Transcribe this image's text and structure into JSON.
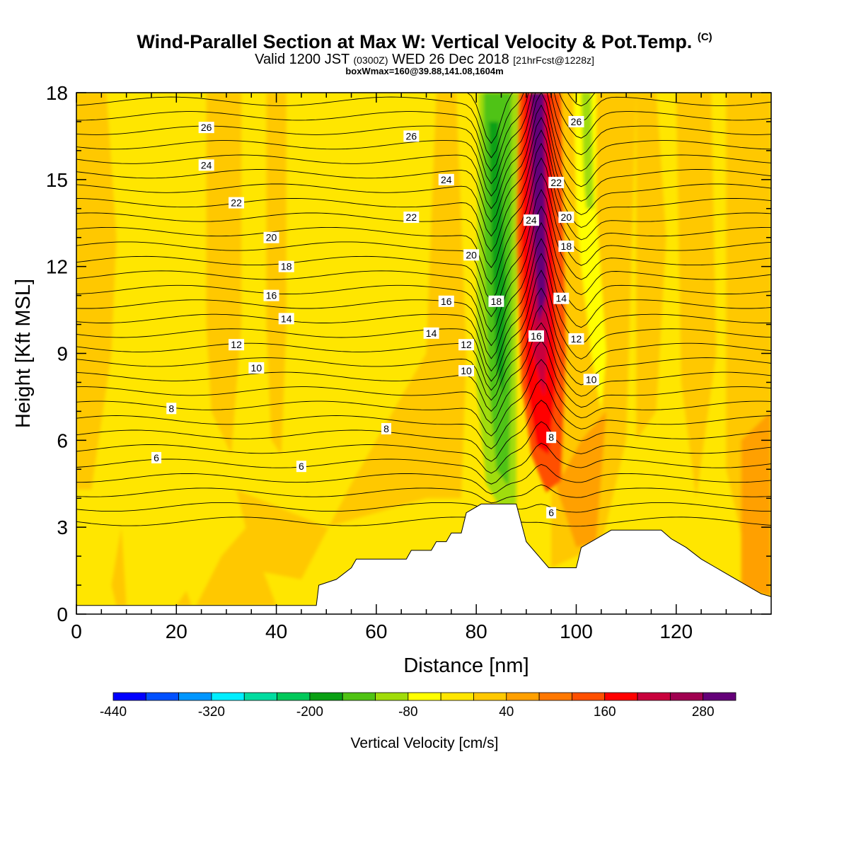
{
  "title": {
    "main": "Wind-Parallel Section at Max W: Vertical Velocity & Pot.Temp.",
    "copyright": "(C)",
    "valid_prefix": "Valid 1200 JST",
    "valid_zulu": "(0300Z)",
    "valid_date": "WED 26 Dec 2018",
    "forecast": "[21hrFcst@1228z]",
    "box_info": "boxWmax=160@39.88,141.08,1604m"
  },
  "chart_data": {
    "type": "contour-section",
    "xlabel": "Distance [nm]",
    "ylabel": "Height [Kft MSL]",
    "xlim": [
      0,
      139
    ],
    "ylim": [
      0,
      18
    ],
    "x_ticks": [
      0,
      20,
      40,
      60,
      80,
      100,
      120
    ],
    "y_ticks": [
      0,
      3,
      6,
      9,
      12,
      15,
      18
    ],
    "colorbar": {
      "label": "Vertical Velocity [cm/s]",
      "tick_labels": [
        "-440",
        "-320",
        "-200",
        "-80",
        "40",
        "160",
        "280"
      ],
      "colors": [
        "#0000ff",
        "#0050ff",
        "#0096ff",
        "#00eeff",
        "#00dca0",
        "#00c85a",
        "#0aa014",
        "#50c314",
        "#a0dc0a",
        "#ffff00",
        "#ffe600",
        "#ffc800",
        "#ffa000",
        "#ff7800",
        "#ff5000",
        "#ff0000",
        "#c8003c",
        "#a00050",
        "#640078"
      ]
    },
    "vertical_velocity_bands": [
      {
        "x": [
          80,
          82
        ],
        "value": -80,
        "description": "yellow-green updraft edge"
      },
      {
        "x": [
          82,
          87
        ],
        "value": -200,
        "description": "green downdraft column"
      },
      {
        "x": [
          89,
          91
        ],
        "value": 160,
        "description": "red updraft edge"
      },
      {
        "x": [
          91,
          95
        ],
        "value": 280,
        "description": "purple updraft core"
      },
      {
        "x": [
          101,
          105
        ],
        "value": -80,
        "description": "green-yellow band"
      }
    ],
    "terrain_kft": {
      "x": [
        0,
        48,
        48.5,
        52,
        55,
        56,
        66,
        67,
        71,
        72,
        74,
        75,
        77,
        78,
        81,
        88,
        90,
        94.5,
        100,
        101,
        103,
        107,
        117,
        119,
        122,
        125,
        128,
        131,
        134,
        137,
        139
      ],
      "y": [
        0.3,
        0.3,
        1.0,
        1.2,
        1.6,
        1.9,
        1.9,
        2.2,
        2.2,
        2.5,
        2.5,
        2.8,
        2.8,
        3.5,
        3.8,
        3.8,
        2.5,
        1.6,
        1.6,
        2.3,
        2.5,
        2.9,
        2.9,
        2.6,
        2.3,
        1.9,
        1.6,
        1.3,
        1.0,
        0.7,
        0.6
      ]
    },
    "theta_contours": {
      "name": "Potential temperature [C]",
      "labels": [
        {
          "value": "26",
          "x": 26,
          "y": 16.8
        },
        {
          "value": "24",
          "x": 26,
          "y": 15.5
        },
        {
          "value": "22",
          "x": 32,
          "y": 14.2
        },
        {
          "value": "20",
          "x": 39,
          "y": 13.0
        },
        {
          "value": "18",
          "x": 42,
          "y": 12.0
        },
        {
          "value": "16",
          "x": 39,
          "y": 11.0
        },
        {
          "value": "14",
          "x": 42,
          "y": 10.2
        },
        {
          "value": "12",
          "x": 32,
          "y": 9.3
        },
        {
          "value": "10",
          "x": 36,
          "y": 8.5
        },
        {
          "value": "8",
          "x": 19,
          "y": 7.1
        },
        {
          "value": "6",
          "x": 16,
          "y": 5.4
        },
        {
          "value": "26",
          "x": 67,
          "y": 16.5
        },
        {
          "value": "24",
          "x": 74,
          "y": 15.0
        },
        {
          "value": "22",
          "x": 67,
          "y": 13.7
        },
        {
          "value": "20",
          "x": 79,
          "y": 12.4
        },
        {
          "value": "16",
          "x": 74,
          "y": 10.8
        },
        {
          "value": "18",
          "x": 84,
          "y": 10.8
        },
        {
          "value": "14",
          "x": 71,
          "y": 9.7
        },
        {
          "value": "12",
          "x": 78,
          "y": 9.3
        },
        {
          "value": "10",
          "x": 78,
          "y": 8.4
        },
        {
          "value": "8",
          "x": 62,
          "y": 6.4
        },
        {
          "value": "6",
          "x": 45,
          "y": 5.1
        },
        {
          "value": "26",
          "x": 100,
          "y": 17.0
        },
        {
          "value": "22",
          "x": 96,
          "y": 14.9
        },
        {
          "value": "24",
          "x": 91,
          "y": 13.6
        },
        {
          "value": "20",
          "x": 98,
          "y": 13.7
        },
        {
          "value": "18",
          "x": 98,
          "y": 12.7
        },
        {
          "value": "14",
          "x": 97,
          "y": 10.9
        },
        {
          "value": "16",
          "x": 92,
          "y": 9.6
        },
        {
          "value": "12",
          "x": 100,
          "y": 9.5
        },
        {
          "value": "10",
          "x": 103,
          "y": 8.1
        },
        {
          "value": "8",
          "x": 95,
          "y": 6.1
        },
        {
          "value": "6",
          "x": 95,
          "y": 3.5
        }
      ]
    }
  }
}
